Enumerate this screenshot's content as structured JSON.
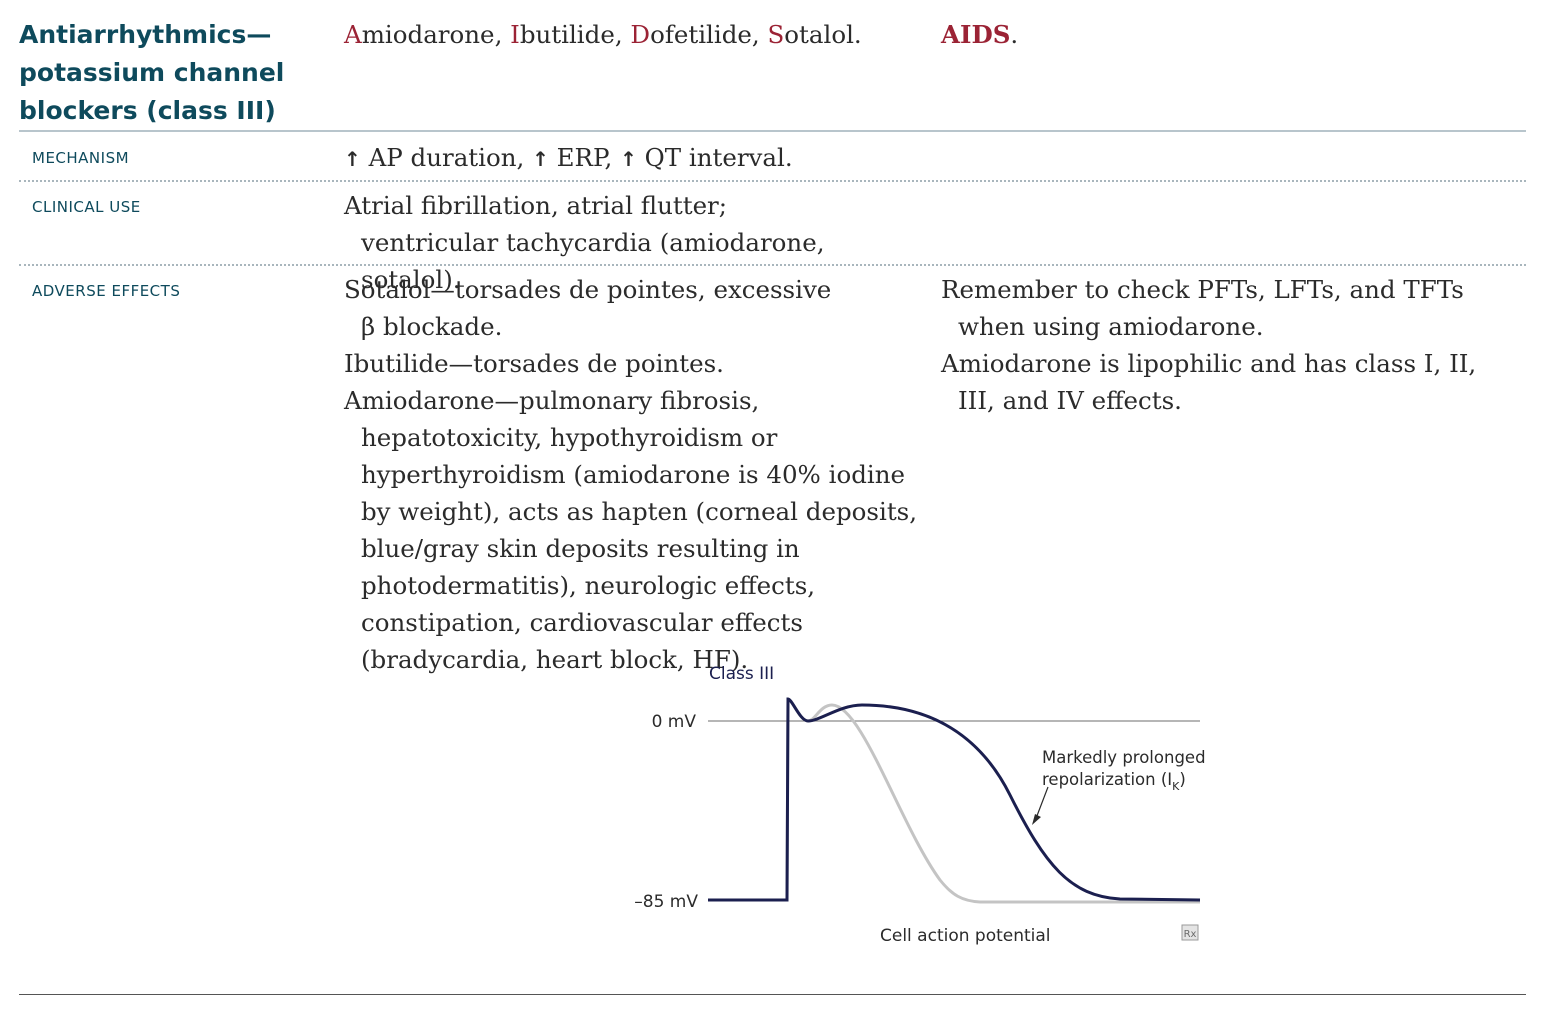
{
  "header": {
    "title": "Antiarrhythmics—potassium channel blockers (class III)",
    "drugs": [
      {
        "initial": "A",
        "rest": "miodarone"
      },
      {
        "initial": "I",
        "rest": "butilide"
      },
      {
        "initial": "D",
        "rest": "ofetilide"
      },
      {
        "initial": "S",
        "rest": "otalol"
      }
    ],
    "mnemonic": "AIDS"
  },
  "mechanism": {
    "label": "MECHANISM",
    "arrow": "↑",
    "items": [
      "AP duration",
      "ERP",
      "QT interval"
    ]
  },
  "clinical_use": {
    "label": "CLINICAL USE",
    "text": "Atrial fibrillation, atrial flutter; ventricular tachycardia (amiodarone, sotalol)."
  },
  "adverse_effects": {
    "label": "ADVERSE EFFECTS",
    "items": [
      "Sotalol—torsades de pointes, excessive β blockade.",
      "Ibutilide—torsades de pointes.",
      "Amiodarone—pulmonary fibrosis, hepatotoxicity, hypothyroidism or hyperthyroidism (amiodarone is 40% iodine by weight), acts as hapten (corneal deposits, blue/gray skin deposits resulting in photodermatitis), neurologic effects, constipation, cardiovascular effects (bradycardia, heart block, HF)."
    ],
    "notes": [
      "Remember to check PFTs, LFTs, and TFTs when using amiodarone.",
      "Amiodarone is lipophilic and has class I, II, III, and IV effects."
    ]
  },
  "figure": {
    "title": "Class III",
    "label_top": "0 mV",
    "label_bottom": "–85 mV",
    "annotation_line1": "Markedly prolonged",
    "annotation_line2": "repolarization (I",
    "annotation_sub": "K",
    "annotation_close": ")",
    "caption": "Cell action potential",
    "badge": "Rx",
    "colors": {
      "class3_curve": "#1b1f4f",
      "baseline_curve": "#c4c4c4",
      "zero_line": "#8a8a8a"
    }
  }
}
